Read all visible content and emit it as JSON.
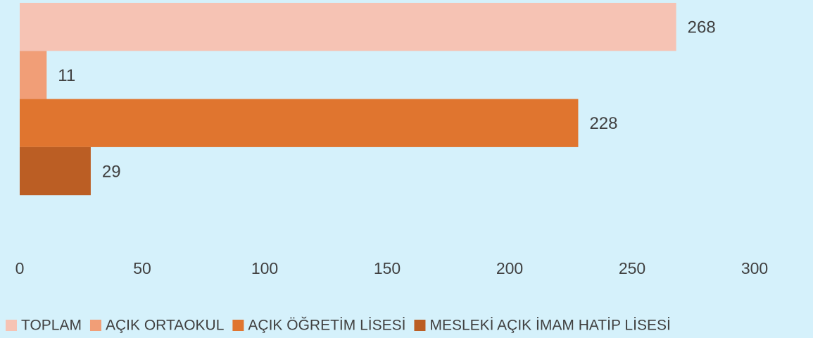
{
  "chart_data": {
    "type": "bar",
    "orientation": "horizontal",
    "series": [
      {
        "name": "TOPLAM",
        "color": "#f6c3b4",
        "values": [
          268
        ]
      },
      {
        "name": "AÇIK ORTAOKUL",
        "color": "#f19e77",
        "values": [
          11
        ]
      },
      {
        "name": "AÇIK ÖĞRETİM LİSESİ",
        "color": "#e0752f",
        "values": [
          228
        ]
      },
      {
        "name": "MESLEKİ AÇIK İMAM HATİP LİSESİ",
        "color": "#bb5e24",
        "values": [
          29
        ]
      }
    ],
    "xlim": [
      0,
      300
    ],
    "xticks": [
      0,
      50,
      100,
      150,
      200,
      250,
      300
    ],
    "grid": false,
    "legend": "bottom"
  }
}
